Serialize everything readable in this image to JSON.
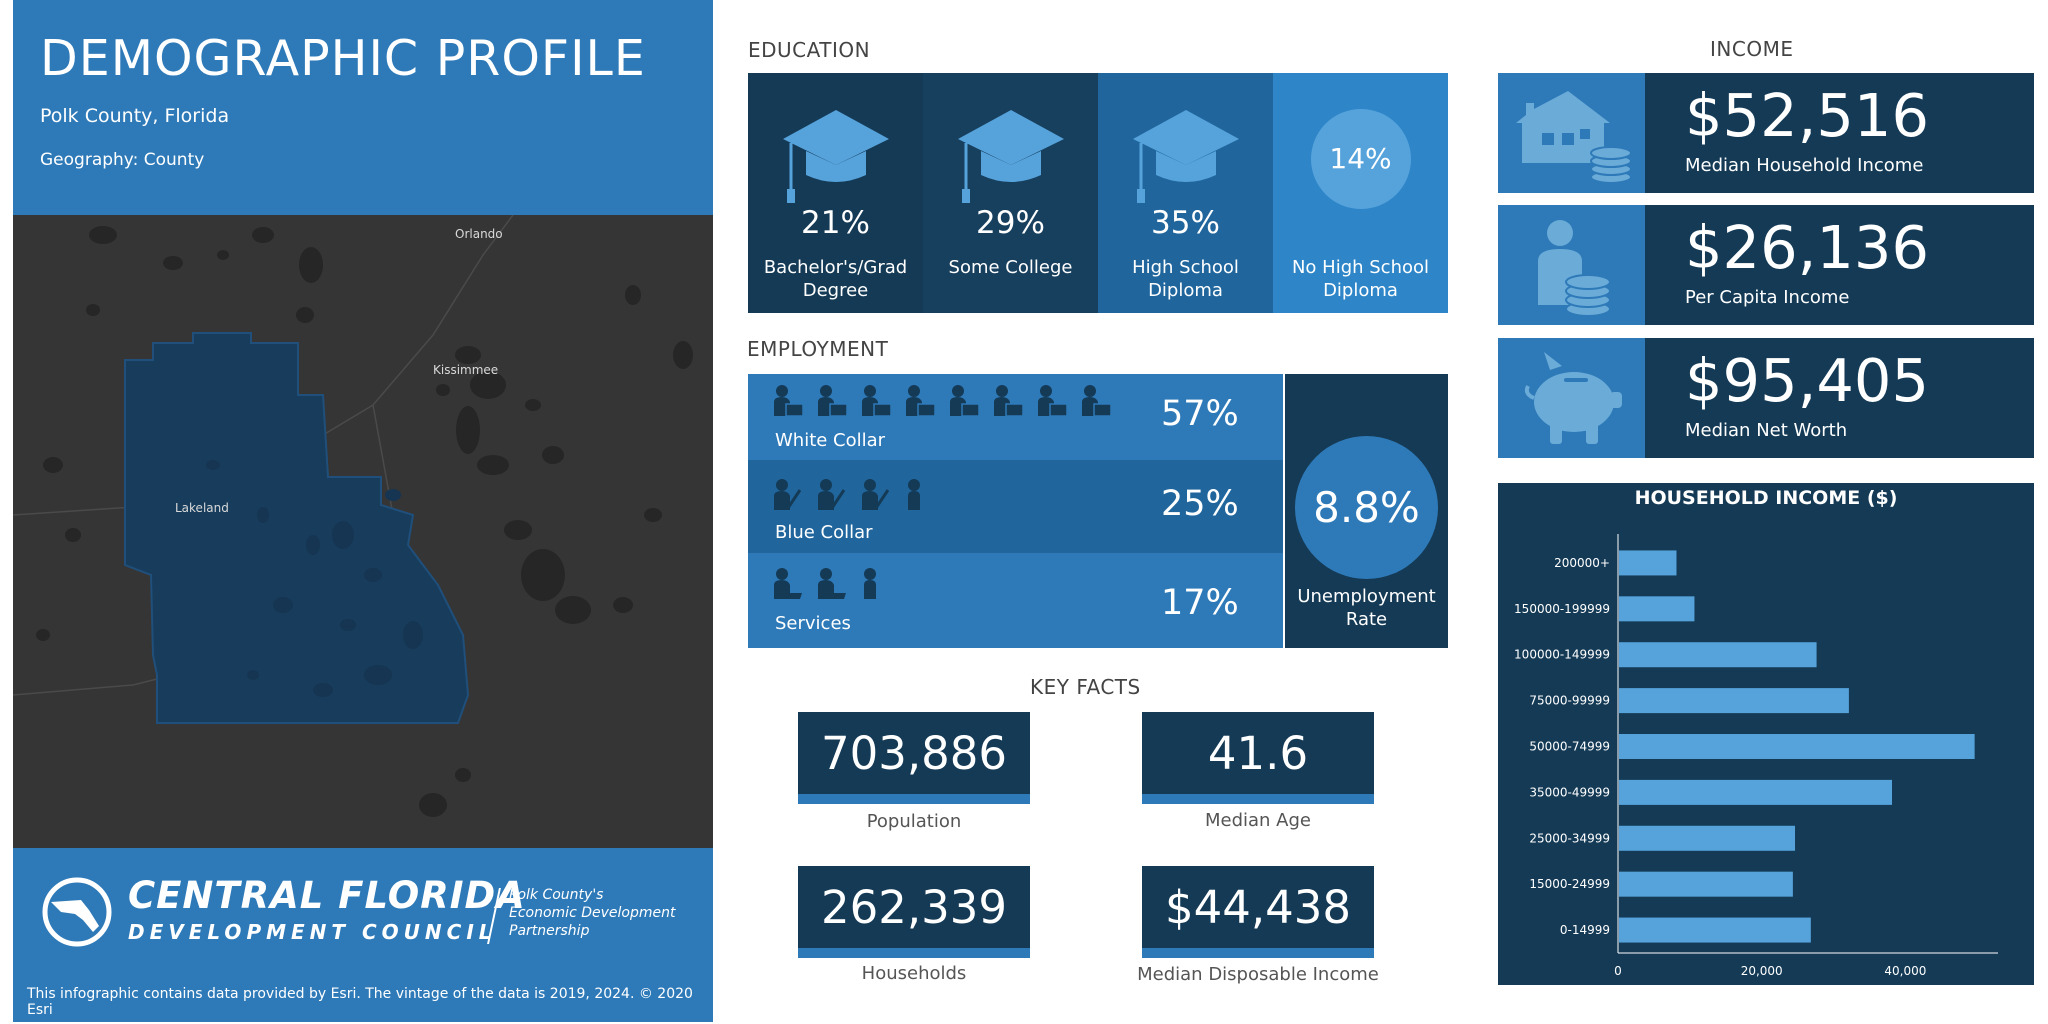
{
  "header": {
    "title": "DEMOGRAPHIC PROFILE",
    "location": "Polk County, Florida",
    "geography": "Geography: County"
  },
  "map": {
    "cities": [
      "Orlando",
      "Kissimmee",
      "Lakeland"
    ],
    "colors": {
      "background": "#353535",
      "highlight": "#173c5c"
    }
  },
  "footer": {
    "logo_main": "CENTRAL FLORIDA",
    "logo_sub": "DEVELOPMENT COUNCIL",
    "logo_side": [
      "Polk County's",
      "Economic Development",
      "Partnership"
    ],
    "note": "This infographic contains data provided by Esri. The vintage of the data is 2019, 2024. © 2020 Esri"
  },
  "education": {
    "title": "EDUCATION",
    "items": [
      {
        "pct": "21%",
        "label_lines": [
          "Bachelor's/Grad",
          "Degree"
        ],
        "icon": "graduation-cap-icon"
      },
      {
        "pct": "29%",
        "label_lines": [
          "Some College",
          ""
        ],
        "icon": "graduation-cap-icon"
      },
      {
        "pct": "35%",
        "label_lines": [
          "High School",
          "Diploma"
        ],
        "icon": "graduation-cap-icon"
      },
      {
        "pct": "14%",
        "label_lines": [
          "No High School",
          "Diploma"
        ],
        "icon": "circle-icon"
      }
    ]
  },
  "employment": {
    "title": "EMPLOYMENT",
    "rows": [
      {
        "label": "White Collar",
        "pct": "57%",
        "icon_count": 8,
        "icon": "office-worker-icon"
      },
      {
        "label": "Blue Collar",
        "pct": "25%",
        "icon_count": 4,
        "icon": "manual-worker-icon"
      },
      {
        "label": "Services",
        "pct": "17%",
        "icon_count": 3,
        "icon": "service-worker-icon"
      }
    ],
    "unemployment": {
      "value": "8.8%",
      "label_lines": [
        "Unemployment",
        "Rate"
      ]
    }
  },
  "key_facts": {
    "title": "KEY FACTS",
    "items": [
      {
        "value": "703,886",
        "label": "Population"
      },
      {
        "value": "41.6",
        "label": "Median Age"
      },
      {
        "value": "262,339",
        "label": "Households"
      },
      {
        "value": "$44,438",
        "label": "Median Disposable Income"
      }
    ]
  },
  "income": {
    "title": "INCOME",
    "items": [
      {
        "value": "$52,516",
        "label": "Median Household Income",
        "icon": "house-coins-icon"
      },
      {
        "value": "$26,136",
        "label": "Per Capita Income",
        "icon": "person-coins-icon"
      },
      {
        "value": "$95,405",
        "label": "Median Net Worth",
        "icon": "piggy-bank-icon"
      }
    ]
  },
  "colors": {
    "dark_navy": "#143a56",
    "mid_blue": "#2e7ab8",
    "light_blue": "#56a3dc",
    "alt_row_blue": "#20669d"
  },
  "chart_data": {
    "type": "bar",
    "orientation": "horizontal",
    "title": "HOUSEHOLD INCOME ($)",
    "categories": [
      "200000+",
      "150000-199999",
      "100000-149999",
      "75000-99999",
      "50000-74999",
      "35000-49999",
      "25000-34999",
      "15000-24999",
      "0-14999"
    ],
    "values": [
      8000,
      10500,
      27500,
      32000,
      49500,
      38000,
      24500,
      24200,
      26700
    ],
    "xticks": [
      "0",
      "20,000",
      "40,000"
    ],
    "xlim": [
      0,
      51500
    ],
    "grid": false,
    "bar_color": "#56a3dc"
  }
}
